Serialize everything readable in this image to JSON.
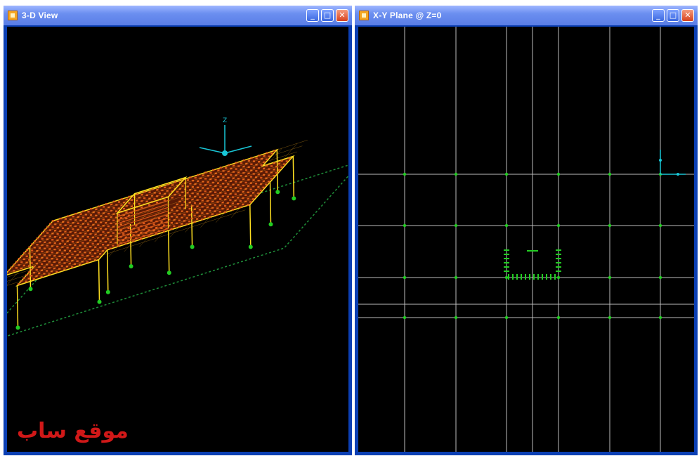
{
  "windows": {
    "left": {
      "title": "3-D View",
      "axis_label": "Z",
      "watermark": "موقع ساب"
    },
    "right": {
      "title": "X-Y Plane @ Z=0"
    }
  },
  "colors": {
    "title_bar": "#6b8ff0",
    "frame": "#0b3fb3",
    "viewport_bg": "#000000",
    "grid_line": "#bdbdbd",
    "grid_point": "#22cc22",
    "slab_orange": "#d9581a",
    "slab_yellow": "#ffe020",
    "axis_cyan": "#19c6d6",
    "watermark": "#d01818"
  },
  "icons": [
    "app-icon",
    "minimize-icon",
    "maximize-icon",
    "close-icon"
  ]
}
